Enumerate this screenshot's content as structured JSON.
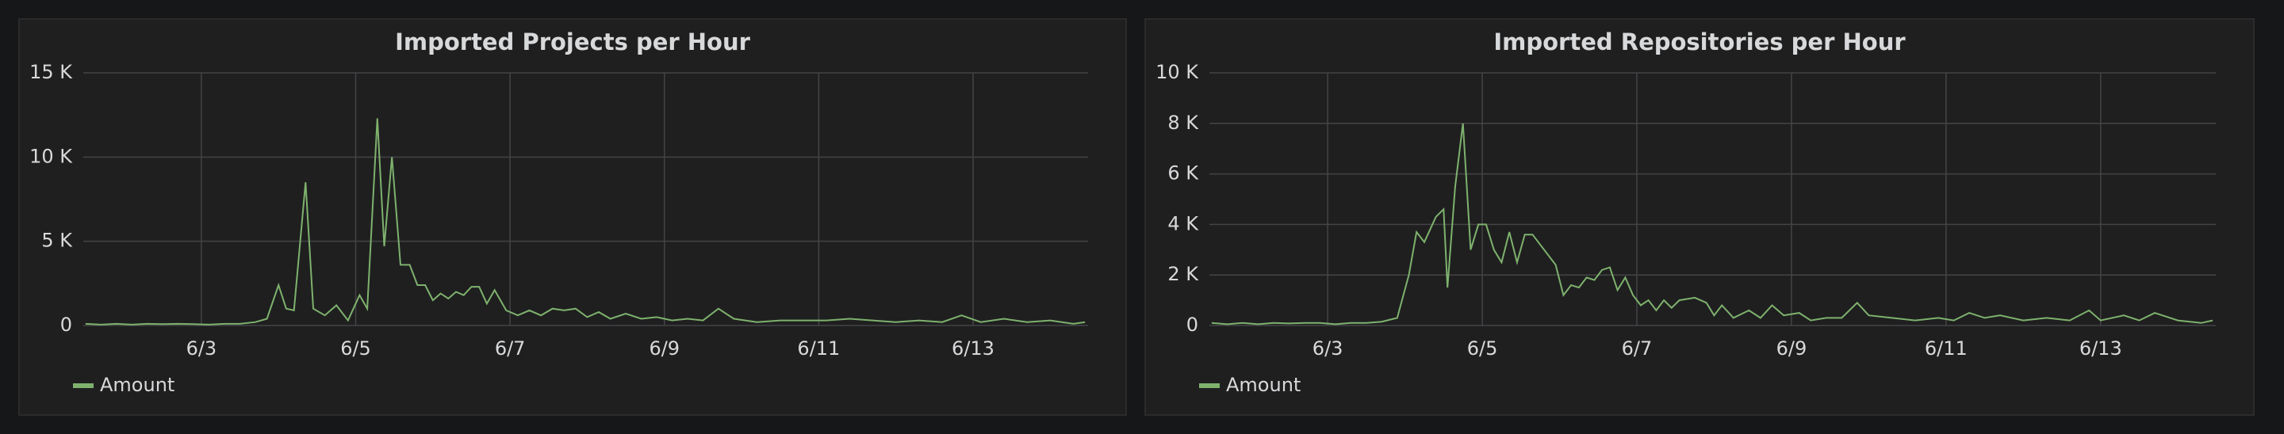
{
  "chart_data": [
    {
      "type": "line",
      "title": "Imported Projects per Hour",
      "x": [
        1.5,
        1.7,
        1.9,
        2.1,
        2.3,
        2.5,
        2.7,
        2.9,
        3.1,
        3.3,
        3.5,
        3.7,
        3.85,
        4.0,
        4.1,
        4.2,
        4.35,
        4.45,
        4.6,
        4.75,
        4.9,
        5.05,
        5.15,
        5.28,
        5.37,
        5.47,
        5.58,
        5.7,
        5.8,
        5.9,
        6.0,
        6.1,
        6.2,
        6.3,
        6.4,
        6.5,
        6.6,
        6.7,
        6.8,
        6.95,
        7.1,
        7.25,
        7.4,
        7.55,
        7.7,
        7.85,
        8.0,
        8.15,
        8.3,
        8.5,
        8.7,
        8.9,
        9.1,
        9.3,
        9.5,
        9.7,
        9.9,
        10.2,
        10.5,
        10.8,
        11.1,
        11.4,
        11.7,
        12.0,
        12.3,
        12.6,
        12.85,
        13.1,
        13.4,
        13.7,
        14.0,
        14.3,
        14.45
      ],
      "series": [
        {
          "name": "Amount",
          "color": "#7eb26d",
          "values": [
            100,
            50,
            100,
            50,
            100,
            80,
            100,
            80,
            50,
            100,
            100,
            200,
            400,
            2400,
            1000,
            900,
            8500,
            1000,
            600,
            1200,
            300,
            1800,
            1000,
            12300,
            4700,
            10000,
            3600,
            3600,
            2400,
            2400,
            1500,
            1900,
            1600,
            2000,
            1800,
            2300,
            2300,
            1300,
            2100,
            900,
            600,
            900,
            600,
            1000,
            900,
            1000,
            500,
            800,
            400,
            700,
            400,
            500,
            300,
            400,
            300,
            1000,
            400,
            200,
            300,
            300,
            300,
            400,
            300,
            200,
            300,
            200,
            600,
            200,
            400,
            200,
            300,
            100,
            200
          ]
        }
      ],
      "xlim": [
        1.47,
        14.49
      ],
      "xticks": [
        {
          "value": 3,
          "label": "6/3"
        },
        {
          "value": 5,
          "label": "6/5"
        },
        {
          "value": 7,
          "label": "6/7"
        },
        {
          "value": 9,
          "label": "6/9"
        },
        {
          "value": 11,
          "label": "6/11"
        },
        {
          "value": 13,
          "label": "6/13"
        }
      ],
      "ylim": [
        0,
        15000
      ],
      "yticks": [
        0,
        {
          "value": 5000,
          "label": "5 K"
        },
        {
          "value": 10000,
          "label": "10 K"
        },
        {
          "value": 15000,
          "label": "15 K"
        }
      ],
      "grid": true,
      "legend": "bottom-left"
    },
    {
      "type": "line",
      "title": "Imported Repositories per Hour",
      "x": [
        1.5,
        1.7,
        1.9,
        2.1,
        2.3,
        2.5,
        2.7,
        2.9,
        3.1,
        3.3,
        3.5,
        3.7,
        3.9,
        4.05,
        4.15,
        4.25,
        4.4,
        4.5,
        4.55,
        4.65,
        4.75,
        4.85,
        4.95,
        5.05,
        5.15,
        5.25,
        5.35,
        5.45,
        5.55,
        5.65,
        5.8,
        5.95,
        6.05,
        6.15,
        6.25,
        6.35,
        6.45,
        6.55,
        6.65,
        6.75,
        6.85,
        6.95,
        7.05,
        7.15,
        7.25,
        7.35,
        7.45,
        7.55,
        7.75,
        7.9,
        8.0,
        8.1,
        8.25,
        8.45,
        8.6,
        8.75,
        8.9,
        9.1,
        9.25,
        9.45,
        9.65,
        9.85,
        10.0,
        10.3,
        10.6,
        10.9,
        11.1,
        11.3,
        11.5,
        11.7,
        12.0,
        12.3,
        12.6,
        12.85,
        13.0,
        13.3,
        13.5,
        13.7,
        14.0,
        14.3,
        14.45
      ],
      "series": [
        {
          "name": "Amount",
          "color": "#7eb26d",
          "values": [
            100,
            50,
            100,
            50,
            100,
            80,
            100,
            100,
            50,
            100,
            100,
            150,
            300,
            2000,
            3700,
            3300,
            4300,
            4600,
            1500,
            5500,
            8000,
            3000,
            4000,
            4000,
            3000,
            2500,
            3700,
            2500,
            3600,
            3600,
            3000,
            2400,
            1200,
            1600,
            1500,
            1900,
            1800,
            2200,
            2300,
            1400,
            1900,
            1200,
            800,
            1000,
            600,
            1000,
            700,
            1000,
            1100,
            900,
            400,
            800,
            300,
            600,
            300,
            800,
            400,
            500,
            200,
            300,
            300,
            900,
            400,
            300,
            200,
            300,
            200,
            500,
            300,
            400,
            200,
            300,
            200,
            600,
            200,
            400,
            200,
            500,
            200,
            100,
            200
          ]
        }
      ],
      "xlim": [
        1.47,
        14.49
      ],
      "xticks": [
        {
          "value": 3,
          "label": "6/3"
        },
        {
          "value": 5,
          "label": "6/5"
        },
        {
          "value": 7,
          "label": "6/7"
        },
        {
          "value": 9,
          "label": "6/9"
        },
        {
          "value": 11,
          "label": "6/11"
        },
        {
          "value": 13,
          "label": "6/13"
        }
      ],
      "ylim": [
        0,
        10000
      ],
      "yticks": [
        0,
        {
          "value": 2000,
          "label": "2 K"
        },
        {
          "value": 4000,
          "label": "4 K"
        },
        {
          "value": 6000,
          "label": "6 K"
        },
        {
          "value": 8000,
          "label": "8 K"
        },
        {
          "value": 10000,
          "label": "10 K"
        }
      ],
      "grid": true,
      "legend": "bottom-left"
    }
  ]
}
